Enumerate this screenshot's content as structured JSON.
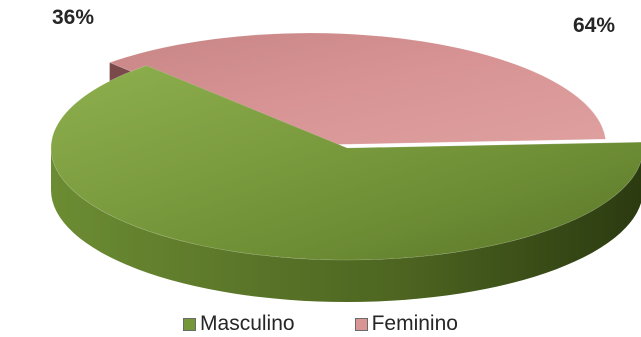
{
  "chart_data": {
    "type": "pie",
    "style": "3d-exploded",
    "categories": [
      "Masculino",
      "Feminino"
    ],
    "values": [
      64,
      36
    ],
    "data_labels": [
      "64%",
      "36%"
    ],
    "colors": [
      "#76963a",
      "#d99594"
    ],
    "legend_placement": "bottom",
    "title": ""
  }
}
